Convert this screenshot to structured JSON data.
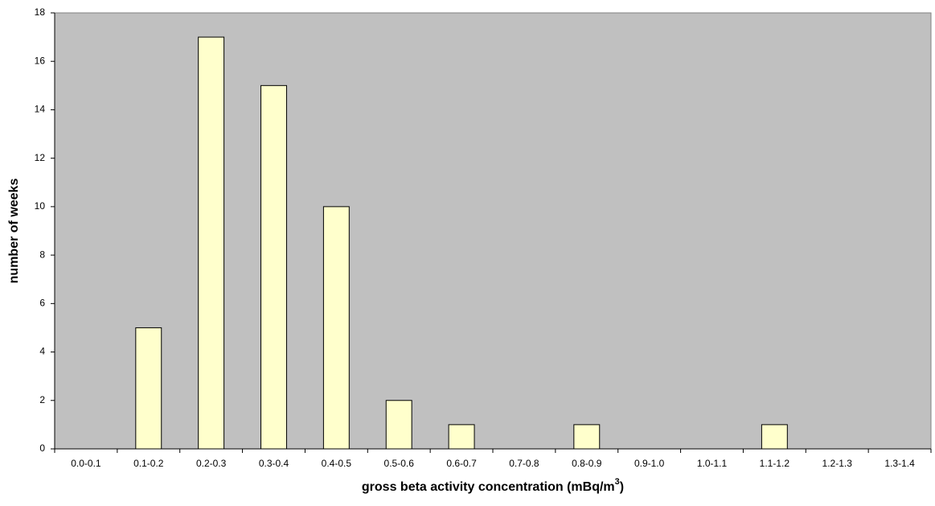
{
  "chart_data": {
    "type": "bar",
    "x_label": [
      "gross beta activity concentration (mBq/m",
      "3",
      ")"
    ],
    "y_label": "number of weeks",
    "categories": [
      "0.0-0.1",
      "0.1-0.2",
      "0.2-0.3",
      "0.3-0.4",
      "0.4-0.5",
      "0.5-0.6",
      "0.6-0.7",
      "0.7-0.8",
      "0.8-0.9",
      "0.9-1.0",
      "1.0-1.1",
      "1.1-1.2",
      "1.2-1.3",
      "1.3-1.4"
    ],
    "values": [
      0,
      5,
      17,
      15,
      10,
      2,
      1,
      0,
      1,
      0,
      0,
      1,
      0,
      0
    ],
    "color": "#ffffcc",
    "plot_background": "#c0c0c0",
    "ylim": [
      0,
      18
    ],
    "yticks": [
      0,
      2,
      4,
      6,
      8,
      10,
      12,
      14,
      16,
      18
    ],
    "grid": false
  }
}
